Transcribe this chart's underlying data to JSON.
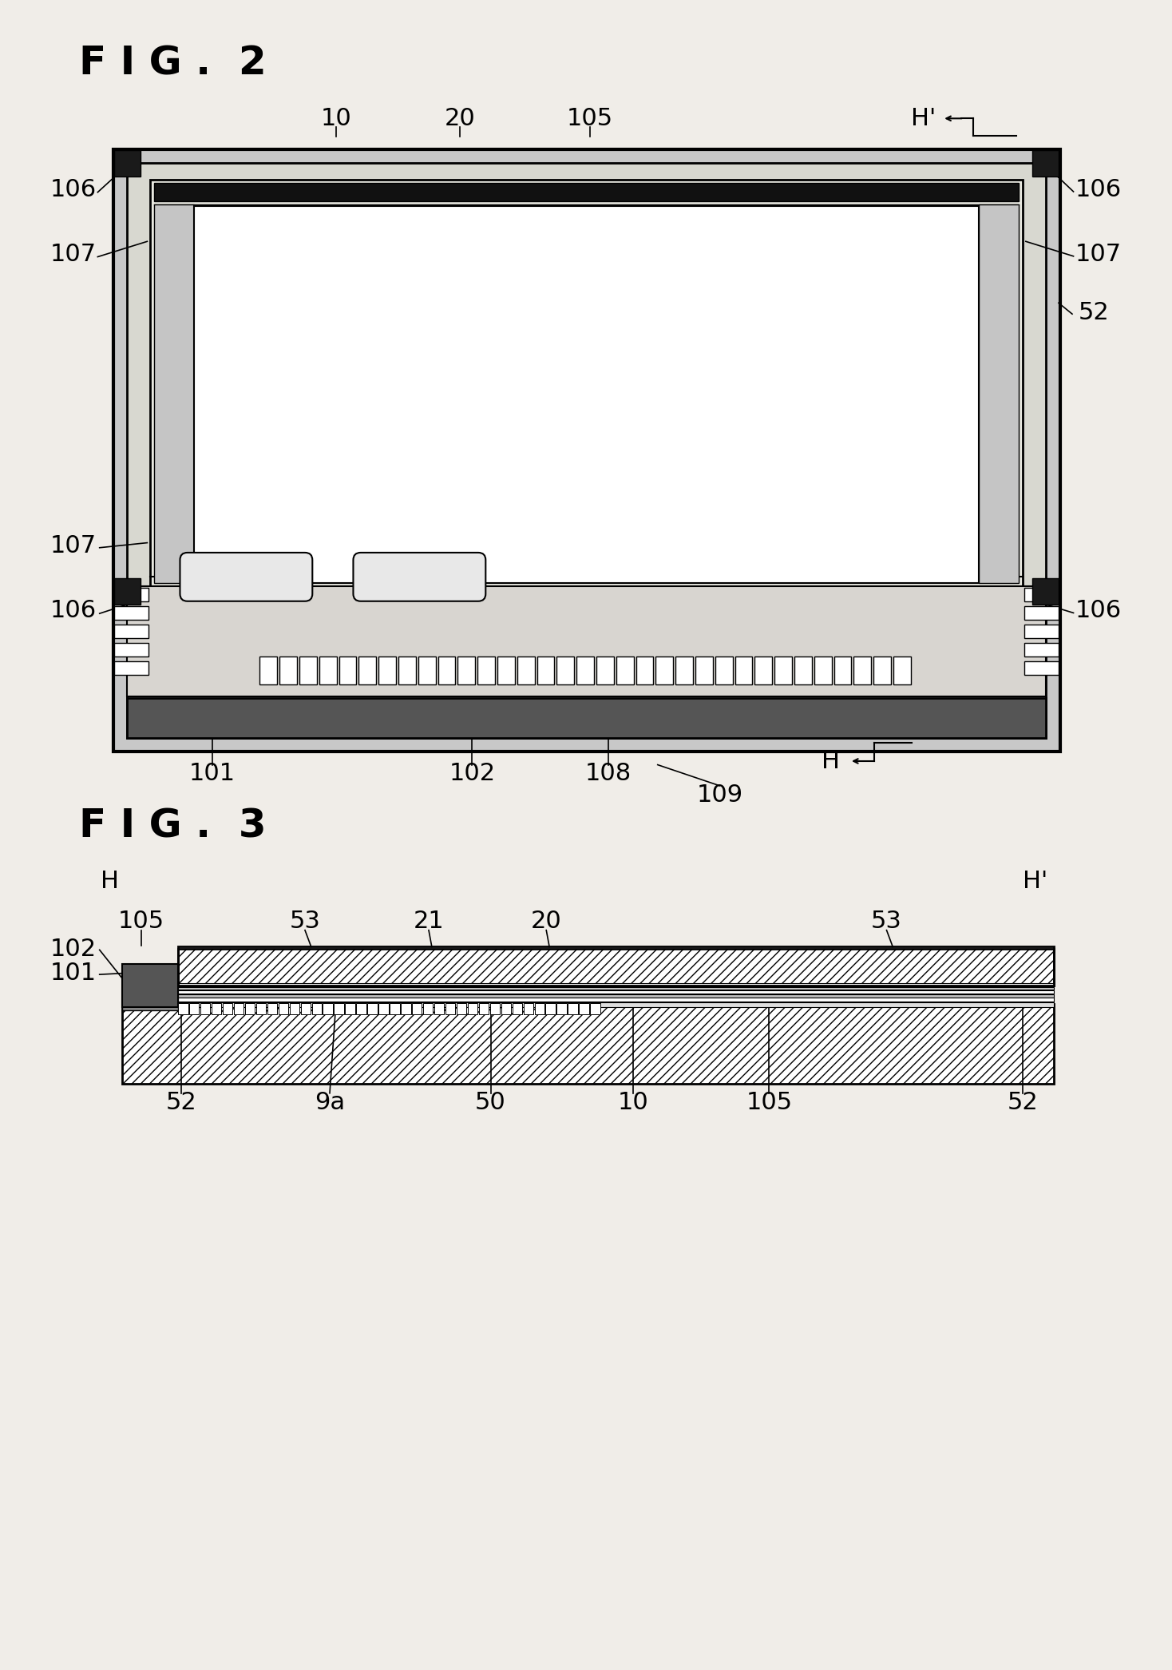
{
  "bg_color": "#f0ede8",
  "fig2_title": "F I G .  2",
  "fig3_title": "F I G .  3",
  "title_fontsize": 36,
  "label_fontsize": 22
}
